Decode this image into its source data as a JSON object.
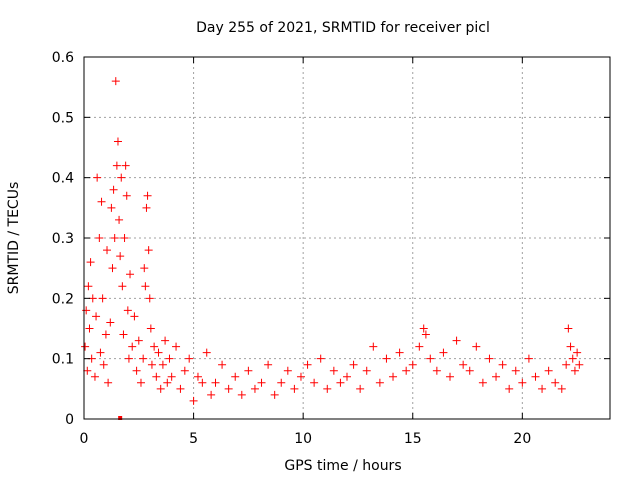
{
  "chart_data": {
    "type": "scatter",
    "title": "Day 255 of 2021, SRMTID for receiver picl",
    "xlabel": "GPS time / hours",
    "ylabel": "SRMTID / TECUs",
    "xlim": [
      0,
      24
    ],
    "ylim": [
      0,
      0.6
    ],
    "xticks": [
      0,
      5,
      10,
      15,
      20
    ],
    "xtick_labels": [
      "0",
      "5",
      "10",
      "15",
      "20"
    ],
    "yticks": [
      0,
      0.1,
      0.2,
      0.3,
      0.4,
      0.5,
      0.6
    ],
    "ytick_labels": [
      "0",
      "0.1",
      "0.2",
      "0.3",
      "0.4",
      "0.5",
      "0.6"
    ],
    "grid": true,
    "marker": "+",
    "marker_color": "#ff0000",
    "series": [
      {
        "name": "SRMTID",
        "x": [
          0.05,
          0.1,
          0.15,
          0.2,
          0.25,
          0.3,
          0.35,
          0.4,
          0.5,
          0.55,
          0.6,
          0.7,
          0.75,
          0.8,
          0.85,
          0.9,
          1.0,
          1.05,
          1.1,
          1.2,
          1.25,
          1.3,
          1.35,
          1.4,
          1.45,
          1.5,
          1.55,
          1.6,
          1.65,
          1.7,
          1.75,
          1.8,
          1.85,
          1.9,
          1.95,
          2.0,
          2.05,
          2.1,
          2.2,
          2.3,
          2.4,
          2.5,
          2.6,
          2.7,
          2.75,
          2.8,
          2.85,
          2.9,
          2.95,
          3.0,
          3.05,
          3.1,
          3.2,
          3.3,
          3.4,
          3.5,
          3.6,
          3.7,
          3.8,
          3.9,
          4.0,
          4.2,
          4.4,
          4.6,
          4.8,
          5.0,
          5.2,
          5.4,
          5.6,
          5.8,
          6.0,
          6.3,
          6.6,
          6.9,
          7.2,
          7.5,
          7.8,
          8.1,
          8.4,
          8.7,
          9.0,
          9.3,
          9.6,
          9.9,
          10.2,
          10.5,
          10.8,
          11.1,
          11.4,
          11.7,
          12.0,
          12.3,
          12.6,
          12.9,
          13.2,
          13.5,
          13.8,
          14.1,
          14.4,
          14.7,
          15.0,
          15.3,
          15.5,
          15.6,
          15.8,
          16.1,
          16.4,
          16.7,
          17.0,
          17.3,
          17.6,
          17.9,
          18.2,
          18.5,
          18.8,
          19.1,
          19.4,
          19.7,
          20.0,
          20.3,
          20.6,
          20.9,
          21.2,
          21.5,
          21.8,
          22.0,
          22.1,
          22.2,
          22.3,
          22.4,
          22.5,
          22.6
        ],
        "y": [
          0.12,
          0.18,
          0.08,
          0.22,
          0.15,
          0.26,
          0.1,
          0.2,
          0.07,
          0.17,
          0.4,
          0.3,
          0.11,
          0.36,
          0.2,
          0.09,
          0.14,
          0.28,
          0.06,
          0.16,
          0.35,
          0.25,
          0.38,
          0.3,
          0.56,
          0.42,
          0.46,
          0.33,
          0.27,
          0.4,
          0.22,
          0.14,
          0.3,
          0.42,
          0.37,
          0.18,
          0.1,
          0.24,
          0.12,
          0.17,
          0.08,
          0.13,
          0.06,
          0.1,
          0.25,
          0.22,
          0.35,
          0.37,
          0.28,
          0.2,
          0.15,
          0.09,
          0.12,
          0.07,
          0.11,
          0.05,
          0.09,
          0.13,
          0.06,
          0.1,
          0.07,
          0.12,
          0.05,
          0.08,
          0.1,
          0.03,
          0.07,
          0.06,
          0.11,
          0.04,
          0.06,
          0.09,
          0.05,
          0.07,
          0.04,
          0.08,
          0.05,
          0.06,
          0.09,
          0.04,
          0.06,
          0.08,
          0.05,
          0.07,
          0.09,
          0.06,
          0.1,
          0.05,
          0.08,
          0.06,
          0.07,
          0.09,
          0.05,
          0.08,
          0.12,
          0.06,
          0.1,
          0.07,
          0.11,
          0.08,
          0.09,
          0.12,
          0.15,
          0.14,
          0.1,
          0.08,
          0.11,
          0.07,
          0.13,
          0.09,
          0.08,
          0.12,
          0.06,
          0.1,
          0.07,
          0.09,
          0.05,
          0.08,
          0.06,
          0.1,
          0.07,
          0.05,
          0.08,
          0.06,
          0.05,
          0.09,
          0.15,
          0.12,
          0.1,
          0.08,
          0.11,
          0.09
        ]
      }
    ],
    "annotations": [
      {
        "x": 1.65,
        "y": 0.0,
        "note": "small square marker at zero"
      }
    ]
  }
}
